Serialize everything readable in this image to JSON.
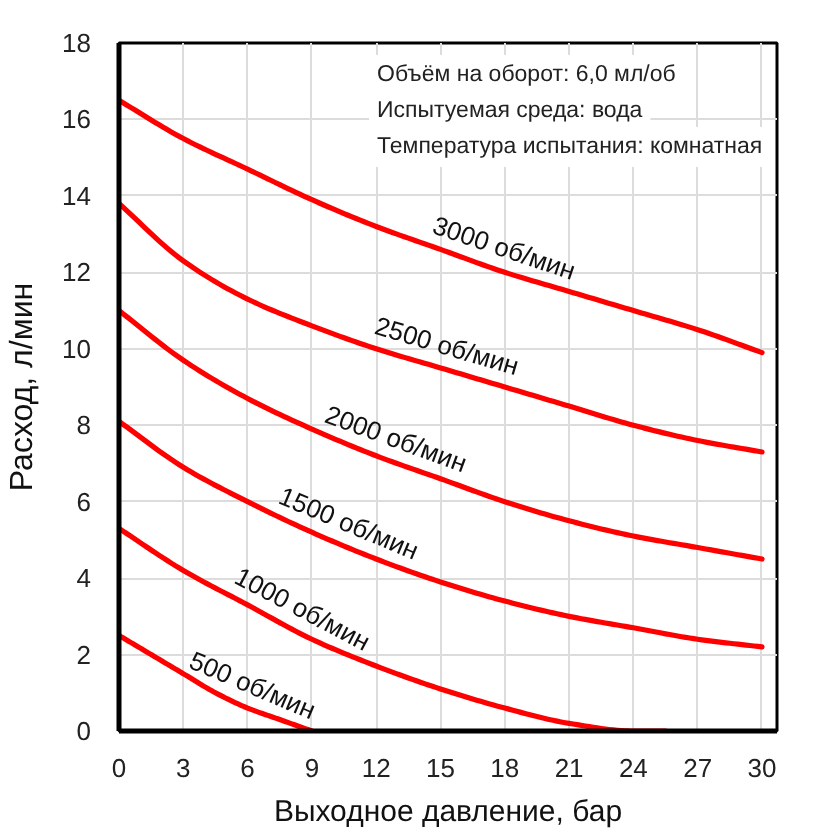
{
  "chart_data": {
    "type": "line",
    "xlabel": "Выходное давление, бар",
    "ylabel": "Расход, л/мин",
    "annotations": [
      "Объём на оборот: 6,0 мл/об",
      "Испытуемая среда: вода",
      "Температура испытания: комнатная"
    ],
    "xlim": [
      0,
      30.7
    ],
    "ylim": [
      0,
      18
    ],
    "xticks": [
      0,
      3,
      6,
      9,
      12,
      15,
      18,
      21,
      24,
      27,
      30
    ],
    "yticks": [
      0,
      2,
      4,
      6,
      8,
      10,
      12,
      14,
      16,
      18
    ],
    "grid": true,
    "line_style": "solid",
    "x": [
      0,
      3,
      6,
      9,
      12,
      15,
      18,
      21,
      24,
      27,
      30
    ],
    "series": [
      {
        "name": "500 об/мин",
        "color": "#ff0000",
        "x": [
          0,
          1.5,
          3,
          4.5,
          6,
          7.5,
          9
        ],
        "values": [
          2.5,
          2.0,
          1.5,
          1.0,
          0.6,
          0.3,
          0
        ]
      },
      {
        "name": "1000 об/мин",
        "color": "#ff0000",
        "x": [
          0,
          3,
          6,
          9,
          12,
          15,
          18,
          21,
          24,
          25.5
        ],
        "values": [
          5.3,
          4.2,
          3.3,
          2.4,
          1.7,
          1.1,
          0.6,
          0.2,
          0,
          0
        ]
      },
      {
        "name": "1500 об/мин",
        "color": "#ff0000",
        "values": [
          8.1,
          6.9,
          6.0,
          5.2,
          4.5,
          3.9,
          3.4,
          3.0,
          2.7,
          2.4,
          2.2
        ]
      },
      {
        "name": "2000 об/мин",
        "color": "#ff0000",
        "values": [
          11.0,
          9.7,
          8.7,
          7.9,
          7.2,
          6.6,
          6.0,
          5.5,
          5.1,
          4.8,
          4.5
        ]
      },
      {
        "name": "2500 об/мин",
        "color": "#ff0000",
        "values": [
          13.8,
          12.3,
          11.3,
          10.6,
          10.0,
          9.5,
          9.0,
          8.5,
          8.0,
          7.6,
          7.3
        ]
      },
      {
        "name": "3000 об/мин",
        "color": "#ff0000",
        "values": [
          16.5,
          15.5,
          14.7,
          13.9,
          13.2,
          12.6,
          12.0,
          11.5,
          11.0,
          10.5,
          9.9
        ]
      }
    ]
  }
}
